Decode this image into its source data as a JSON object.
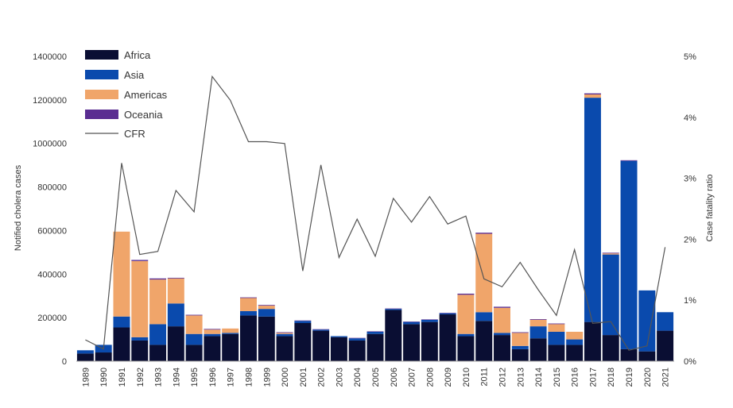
{
  "chart_data": {
    "type": "bar",
    "stacked": true,
    "categories": [
      "1989",
      "1990",
      "1991",
      "1992",
      "1993",
      "1994",
      "1995",
      "1996",
      "1997",
      "1998",
      "1999",
      "2000",
      "2001",
      "2002",
      "2003",
      "2004",
      "2005",
      "2006",
      "2007",
      "2008",
      "2009",
      "2010",
      "2011",
      "2012",
      "2013",
      "2014",
      "2015",
      "2016",
      "2017",
      "2018",
      "2019",
      "2020",
      "2021"
    ],
    "series": [
      {
        "name": "Africa",
        "color": "#0a0e33",
        "values": [
          35000,
          40000,
          155000,
          95000,
          75000,
          160000,
          75000,
          115000,
          125000,
          210000,
          205000,
          115000,
          175000,
          140000,
          110000,
          95000,
          125000,
          235000,
          170000,
          180000,
          215000,
          115000,
          185000,
          120000,
          55000,
          105000,
          75000,
          75000,
          180000,
          120000,
          55000,
          45000,
          140000
        ]
      },
      {
        "name": "Asia",
        "color": "#0a4aad",
        "values": [
          15000,
          35000,
          50000,
          15000,
          95000,
          105000,
          50000,
          10000,
          5000,
          20000,
          35000,
          10000,
          10000,
          5000,
          5000,
          10000,
          10000,
          5000,
          10000,
          10000,
          5000,
          10000,
          40000,
          10000,
          15000,
          55000,
          60000,
          25000,
          1030000,
          370000,
          865000,
          280000,
          85000
        ]
      },
      {
        "name": "Americas",
        "color": "#f0a56a",
        "values": [
          0,
          0,
          390000,
          350000,
          205000,
          115000,
          85000,
          20000,
          20000,
          60000,
          15000,
          5000,
          0,
          0,
          0,
          0,
          0,
          0,
          0,
          0,
          0,
          180000,
          360000,
          115000,
          60000,
          30000,
          35000,
          35000,
          15000,
          5000,
          0,
          0,
          0
        ]
      },
      {
        "name": "Oceania",
        "color": "#5a2d91",
        "values": [
          0,
          0,
          0,
          5000,
          5000,
          3000,
          3000,
          3000,
          0,
          3000,
          3000,
          3000,
          2000,
          2000,
          0,
          2000,
          2000,
          2000,
          2000,
          2000,
          2000,
          5000,
          5000,
          5000,
          3000,
          3000,
          3000,
          0,
          5000,
          3000,
          3000,
          0,
          0
        ]
      }
    ],
    "line_series": {
      "name": "CFR",
      "color": "#555555",
      "axis": "right",
      "values": [
        0.35,
        0.2,
        3.25,
        1.75,
        1.8,
        2.8,
        2.45,
        4.67,
        4.28,
        3.6,
        3.6,
        3.57,
        1.48,
        3.22,
        1.7,
        2.33,
        1.72,
        2.67,
        2.28,
        2.7,
        2.25,
        2.38,
        1.35,
        1.22,
        1.62,
        1.17,
        0.75,
        1.83,
        0.62,
        0.65,
        0.18,
        0.25,
        1.87
      ]
    },
    "ylabel": "Notified cholera cases",
    "y2label": "Case fatality ratio",
    "ylim": [
      0,
      1400000
    ],
    "yticks": [
      "0",
      "200000",
      "400000",
      "600000",
      "800000",
      "1000000",
      "1200000",
      "1400000"
    ],
    "y2lim": [
      0,
      5
    ],
    "y2ticks": [
      "0%",
      "1%",
      "2%",
      "3%",
      "4%",
      "5%"
    ],
    "grid": false,
    "legend_position": "top-left"
  }
}
